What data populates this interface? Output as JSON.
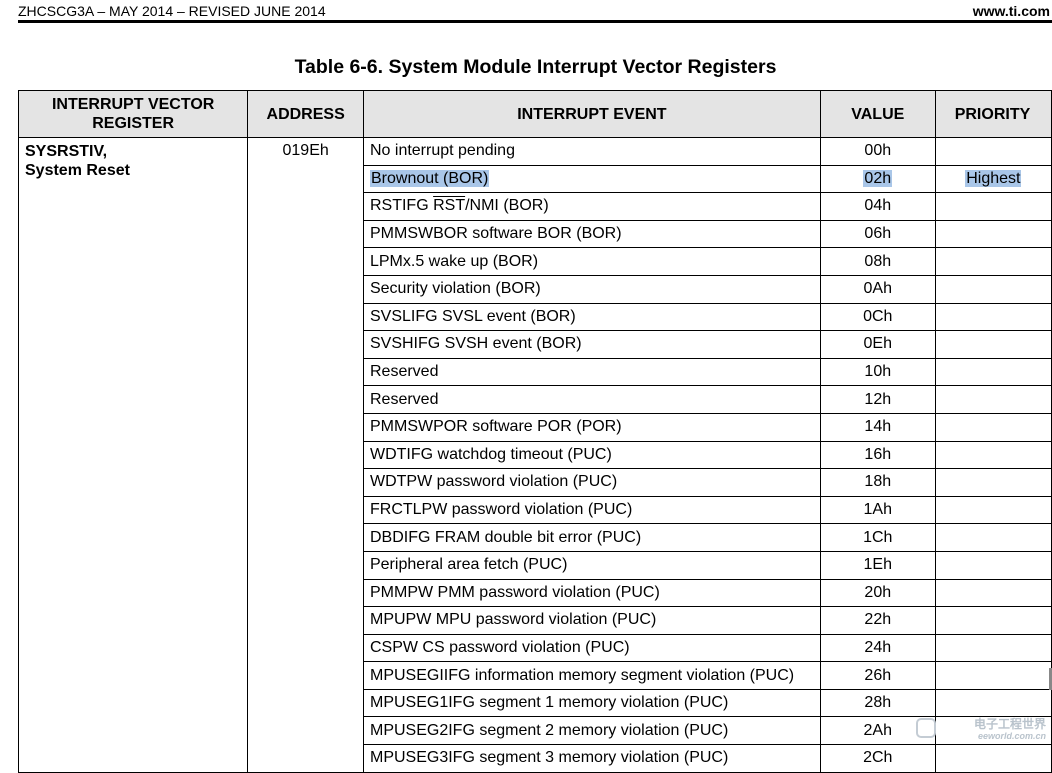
{
  "header": {
    "doc_id": "ZHCSCG3A – MAY 2014 – REVISED JUNE 2014",
    "site": "www.ti.com"
  },
  "caption": "Table 6-6. System Module Interrupt Vector Registers",
  "table": {
    "columns": [
      "INTERRUPT VECTOR REGISTER",
      "ADDRESS",
      "INTERRUPT EVENT",
      "VALUE",
      "PRIORITY"
    ],
    "register_name": "SYSRSTIV,",
    "register_desc": "System Reset",
    "address": "019Eh",
    "rows": [
      {
        "event": "No interrupt pending",
        "value": "00h",
        "priority": ""
      },
      {
        "event": "Brownout (BOR)",
        "value": "02h",
        "priority": "Highest"
      },
      {
        "event_pre": "RSTIFG ",
        "event_over": "RST",
        "event_post": "/NMI (BOR)",
        "value": "04h",
        "priority": ""
      },
      {
        "event": "PMMSWBOR software BOR (BOR)",
        "value": "06h",
        "priority": ""
      },
      {
        "event": "LPMx.5 wake up (BOR)",
        "value": "08h",
        "priority": ""
      },
      {
        "event": "Security violation (BOR)",
        "value": "0Ah",
        "priority": ""
      },
      {
        "event": "SVSLIFG SVSL event (BOR)",
        "value": "0Ch",
        "priority": ""
      },
      {
        "event": "SVSHIFG SVSH event (BOR)",
        "value": "0Eh",
        "priority": ""
      },
      {
        "event": "Reserved",
        "value": "10h",
        "priority": ""
      },
      {
        "event": "Reserved",
        "value": "12h",
        "priority": ""
      },
      {
        "event": "PMMSWPOR software POR (POR)",
        "value": "14h",
        "priority": ""
      },
      {
        "event": "WDTIFG watchdog timeout (PUC)",
        "value": "16h",
        "priority": ""
      },
      {
        "event": "WDTPW password violation (PUC)",
        "value": "18h",
        "priority": ""
      },
      {
        "event": "FRCTLPW password violation (PUC)",
        "value": "1Ah",
        "priority": ""
      },
      {
        "event": "DBDIFG FRAM double bit error (PUC)",
        "value": "1Ch",
        "priority": ""
      },
      {
        "event": "Peripheral area fetch (PUC)",
        "value": "1Eh",
        "priority": ""
      },
      {
        "event": "PMMPW PMM password violation (PUC)",
        "value": "20h",
        "priority": ""
      },
      {
        "event": "MPUPW MPU password violation (PUC)",
        "value": "22h",
        "priority": ""
      },
      {
        "event": "CSPW CS password violation (PUC)",
        "value": "24h",
        "priority": ""
      },
      {
        "event": "MPUSEGIIFG information memory segment violation (PUC)",
        "value": "26h",
        "priority": ""
      },
      {
        "event": "MPUSEG1IFG segment 1 memory violation (PUC)",
        "value": "28h",
        "priority": ""
      },
      {
        "event": "MPUSEG2IFG segment 2 memory violation (PUC)",
        "value": "2Ah",
        "priority": ""
      },
      {
        "event": "MPUSEG3IFG segment 3 memory violation (PUC)",
        "value": "2Ch",
        "priority": ""
      }
    ]
  },
  "watermark": {
    "line1": "电子工程世界",
    "line2": "eeworld.com.cn"
  }
}
